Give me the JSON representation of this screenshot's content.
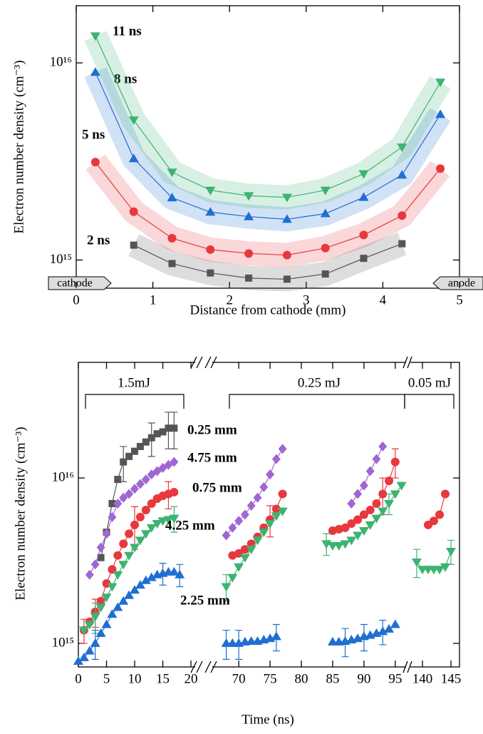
{
  "chart_data": [
    {
      "type": "line",
      "log_y": true,
      "x_label": "Distance from cathode (mm)",
      "y_label": "Electron number density (cm⁻³)",
      "xlim": [
        0,
        5
      ],
      "xticks": [
        0,
        1,
        2,
        3,
        4,
        5
      ],
      "ylim": [
        720000000000000.0,
        1.95e+16
      ],
      "yticks": [
        {
          "value": 1000000000000000.0,
          "label": "10¹⁵"
        },
        {
          "value": 1e+16,
          "label": "10¹⁶"
        }
      ],
      "annotations": [
        "cathode",
        "anode"
      ],
      "series": [
        {
          "name": "2 ns",
          "color": "#555555",
          "marker": "square",
          "x": [
            0.75,
            1.25,
            1.75,
            2.25,
            2.75,
            3.25,
            3.75,
            4.25
          ],
          "values": [
            1190000000000000.0,
            960000000000000.0,
            860000000000000.0,
            810000000000000.0,
            800000000000000.0,
            850000000000000.0,
            1020000000000000.0,
            1210000000000000.0
          ]
        },
        {
          "name": "5 ns",
          "color": "#e8383d",
          "marker": "circle",
          "x": [
            0.25,
            0.75,
            1.25,
            1.75,
            2.25,
            2.75,
            3.25,
            3.75,
            4.25,
            4.75
          ],
          "values": [
            3140000000000000.0,
            1760000000000000.0,
            1290000000000000.0,
            1130000000000000.0,
            1080000000000000.0,
            1060000000000000.0,
            1150000000000000.0,
            1340000000000000.0,
            1680000000000000.0,
            2910000000000000.0
          ]
        },
        {
          "name": "8 ns",
          "color": "#1f6fd1",
          "marker": "triangle-up",
          "x": [
            0.25,
            0.75,
            1.25,
            1.75,
            2.25,
            2.75,
            3.25,
            3.75,
            4.25,
            4.75
          ],
          "values": [
            8970000000000000.0,
            3270000000000000.0,
            2070000000000000.0,
            1750000000000000.0,
            1660000000000000.0,
            1610000000000000.0,
            1720000000000000.0,
            2080000000000000.0,
            2700000000000000.0,
            5480000000000000.0
          ]
        },
        {
          "name": "11 ns",
          "color": "#3cb371",
          "marker": "triangle-down",
          "x": [
            0.25,
            0.75,
            1.25,
            1.75,
            2.25,
            2.75,
            3.25,
            3.75,
            4.25,
            4.75
          ],
          "values": [
            1.37e+16,
            5130000000000000.0,
            2790000000000000.0,
            2260000000000000.0,
            2120000000000000.0,
            2080000000000000.0,
            2260000000000000.0,
            2740000000000000.0,
            3740000000000000.0,
            7980000000000000.0
          ]
        }
      ]
    },
    {
      "type": "line",
      "log_y": true,
      "x_label": "Time (ns)",
      "y_label": "Electron number density (cm⁻³)",
      "xlim": [
        [
          0,
          20.5
        ],
        [
          66,
          96.5
        ],
        [
          138,
          146.5
        ]
      ],
      "xticks": [
        0,
        5,
        10,
        15,
        20,
        70,
        75,
        80,
        85,
        90,
        95,
        140,
        145
      ],
      "ylim": [
        720000000000000.0,
        5e+16
      ],
      "yticks": [
        {
          "value": 1000000000000000.0,
          "label": "10¹⁵"
        },
        {
          "value": 1e+16,
          "label": "10¹⁶"
        }
      ],
      "annotations": [
        "1.5mJ",
        "0.25 mJ",
        "0.05 mJ"
      ],
      "series": [
        {
          "name": "0.25 mm",
          "color": "#555555",
          "marker": "square",
          "x": [
            4,
            5,
            6,
            7,
            8,
            9,
            10,
            11,
            12,
            13,
            14,
            15,
            16,
            17
          ],
          "values": [
            3300000000000000.0,
            4700000000000000.0,
            7000000000000000.0,
            9800000000000000.0,
            1.25e+16,
            1.35e+16,
            1.45e+16,
            1.55e+16,
            1.65e+16,
            1.75e+16,
            1.85e+16,
            1.9e+16,
            2e+16,
            2e+16
          ],
          "errors": [
            null,
            null,
            null,
            null,
            3000000000000000.0,
            null,
            null,
            null,
            null,
            4000000000000000.0,
            null,
            null,
            5000000000000000.0,
            5000000000000000.0
          ]
        },
        {
          "name": "4.75 mm",
          "color": "#a066d3",
          "marker": "diamond",
          "x": [
            2,
            3,
            4,
            5,
            6,
            7,
            8,
            9,
            10,
            11,
            12,
            13,
            14,
            15,
            16,
            17,
            null,
            68,
            69,
            70,
            71,
            72,
            73,
            74,
            75,
            76,
            77,
            null,
            88,
            89,
            90,
            91,
            92,
            93
          ],
          "values": [
            2600000000000000.0,
            3000000000000000.0,
            3800000000000000.0,
            4600000000000000.0,
            5800000000000000.0,
            7000000000000000.0,
            7600000000000000.0,
            8000000000000000.0,
            8600000000000000.0,
            9200000000000000.0,
            9800000000000000.0,
            1.05e+16,
            1.1e+16,
            1.15e+16,
            1.2e+16,
            1.25e+16,
            null,
            4500000000000000.0,
            5000000000000000.0,
            5500000000000000.0,
            6000000000000000.0,
            6800000000000000.0,
            7600000000000000.0,
            8800000000000000.0,
            1.05e+16,
            1.3e+16,
            1.5e+16,
            null,
            7000000000000000.0,
            8000000000000000.0,
            9000000000000000.0,
            1.1e+16,
            1.3e+16,
            1.55e+16
          ]
        },
        {
          "name": "0.75 mm",
          "color": "#e8383d",
          "marker": "circle",
          "x": [
            1,
            2,
            3,
            4,
            5,
            6,
            7,
            8,
            9,
            10,
            11,
            12,
            13,
            14,
            15,
            16,
            17,
            null,
            69,
            70,
            71,
            72,
            73,
            74,
            75,
            76,
            77,
            null,
            85,
            86,
            87,
            88,
            89,
            90,
            91,
            92,
            93,
            94,
            95,
            null,
            141,
            142,
            143,
            144
          ],
          "values": [
            1200000000000000.0,
            1350000000000000.0,
            1550000000000000.0,
            1800000000000000.0,
            2300000000000000.0,
            2800000000000000.0,
            3400000000000000.0,
            4000000000000000.0,
            4600000000000000.0,
            5200000000000000.0,
            5800000000000000.0,
            6400000000000000.0,
            7000000000000000.0,
            7500000000000000.0,
            7800000000000000.0,
            8000000000000000.0,
            8200000000000000.0,
            null,
            3400000000000000.0,
            3500000000000000.0,
            3700000000000000.0,
            4000000000000000.0,
            4400000000000000.0,
            5000000000000000.0,
            5600000000000000.0,
            6500000000000000.0,
            8000000000000000.0,
            null,
            4800000000000000.0,
            4900000000000000.0,
            5000000000000000.0,
            5300000000000000.0,
            5600000000000000.0,
            6000000000000000.0,
            6400000000000000.0,
            7000000000000000.0,
            8000000000000000.0,
            9600000000000000.0,
            1.25e+16,
            null,
            5200000000000000.0,
            5500000000000000.0,
            6000000000000000.0,
            8000000000000000.0
          ],
          "errors": [
            200000000000000.0,
            null,
            300000000000000.0,
            null,
            null,
            null,
            null,
            null,
            null,
            1500000000000000.0,
            null,
            null,
            null,
            null,
            null,
            1500000000000000.0,
            null,
            null,
            null,
            null,
            null,
            null,
            null,
            null,
            1200000000000000.0,
            null,
            null,
            null,
            null,
            null,
            null,
            null,
            null,
            null,
            null,
            null,
            2000000000000000.0,
            null,
            2500000000000000.0,
            null,
            null,
            null,
            null,
            null
          ]
        },
        {
          "name": "4.25 mm",
          "color": "#3cb371",
          "marker": "triangle-down",
          "x": [
            1,
            2,
            3,
            4,
            5,
            6,
            7,
            8,
            9,
            10,
            11,
            12,
            13,
            14,
            15,
            16,
            17,
            null,
            68,
            69,
            70,
            71,
            72,
            73,
            74,
            75,
            76,
            77,
            null,
            84,
            85,
            86,
            87,
            88,
            89,
            90,
            91,
            92,
            93,
            94,
            95,
            96,
            null,
            139,
            140,
            141,
            142,
            143,
            144,
            145
          ],
          "values": [
            1200000000000000.0,
            1300000000000000.0,
            1450000000000000.0,
            1650000000000000.0,
            1900000000000000.0,
            2200000000000000.0,
            2600000000000000.0,
            3000000000000000.0,
            3400000000000000.0,
            3800000000000000.0,
            4200000000000000.0,
            4600000000000000.0,
            5000000000000000.0,
            5300000000000000.0,
            5500000000000000.0,
            5600000000000000.0,
            5700000000000000.0,
            null,
            2200000000000000.0,
            2500000000000000.0,
            2900000000000000.0,
            3300000000000000.0,
            3700000000000000.0,
            4200000000000000.0,
            4700000000000000.0,
            5300000000000000.0,
            5900000000000000.0,
            6300000000000000.0,
            null,
            4000000000000000.0,
            3900000000000000.0,
            3900000000000000.0,
            4000000000000000.0,
            4200000000000000.0,
            4500000000000000.0,
            4800000000000000.0,
            5200000000000000.0,
            5700000000000000.0,
            6300000000000000.0,
            7000000000000000.0,
            8000000000000000.0,
            9000000000000000.0,
            null,
            3100000000000000.0,
            2800000000000000.0,
            2800000000000000.0,
            2800000000000000.0,
            2800000000000000.0,
            2900000000000000.0,
            3600000000000000.0
          ],
          "errors": [
            null,
            null,
            300000000000000.0,
            null,
            null,
            null,
            null,
            null,
            null,
            null,
            null,
            null,
            null,
            null,
            null,
            null,
            1000000000000000.0,
            null,
            400000000000000.0,
            null,
            null,
            null,
            null,
            null,
            null,
            null,
            null,
            null,
            null,
            600000000000000.0,
            null,
            null,
            null,
            null,
            null,
            null,
            null,
            null,
            null,
            1000000000000000.0,
            null,
            null,
            null,
            600000000000000.0,
            null,
            null,
            null,
            null,
            null,
            600000000000000.0
          ]
        },
        {
          "name": "2.25 mm",
          "color": "#1f6fd1",
          "marker": "triangle-up",
          "x": [
            0,
            1,
            2,
            3,
            4,
            5,
            6,
            7,
            8,
            9,
            10,
            11,
            12,
            13,
            14,
            15,
            16,
            17,
            18,
            null,
            68,
            69,
            70,
            71,
            72,
            73,
            74,
            75,
            76,
            null,
            85,
            86,
            87,
            88,
            89,
            90,
            91,
            92,
            93,
            94,
            95
          ],
          "values": [
            780000000000000.0,
            820000000000000.0,
            900000000000000.0,
            1000000000000000.0,
            1150000000000000.0,
            1300000000000000.0,
            1500000000000000.0,
            1650000000000000.0,
            1800000000000000.0,
            1950000000000000.0,
            2100000000000000.0,
            2250000000000000.0,
            2400000000000000.0,
            2500000000000000.0,
            2600000000000000.0,
            2650000000000000.0,
            2700000000000000.0,
            2700000000000000.0,
            2600000000000000.0,
            null,
            1000000000000000.0,
            1000000000000000.0,
            1000000000000000.0,
            1020000000000000.0,
            1030000000000000.0,
            1030000000000000.0,
            1050000000000000.0,
            1070000000000000.0,
            1100000000000000.0,
            null,
            1020000000000000.0,
            1020000000000000.0,
            1030000000000000.0,
            1050000000000000.0,
            1070000000000000.0,
            1100000000000000.0,
            1120000000000000.0,
            1150000000000000.0,
            1180000000000000.0,
            1220000000000000.0,
            1300000000000000.0
          ],
          "errors": [
            null,
            null,
            null,
            200000000000000.0,
            null,
            null,
            null,
            null,
            null,
            null,
            null,
            null,
            null,
            null,
            null,
            400000000000000.0,
            null,
            null,
            400000000000000.0,
            null,
            200000000000000.0,
            null,
            200000000000000.0,
            null,
            null,
            null,
            null,
            null,
            200000000000000.0,
            null,
            null,
            null,
            200000000000000.0,
            null,
            null,
            200000000000000.0,
            null,
            null,
            200000000000000.0,
            null,
            null
          ]
        }
      ]
    }
  ]
}
